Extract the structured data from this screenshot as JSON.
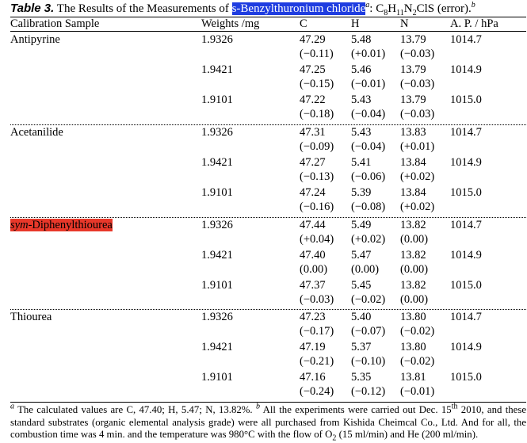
{
  "caption": {
    "label": "Table 3.",
    "text": "The Results of the Measurements of",
    "compound": "s-Benzylthuronium chloride",
    "sup_a": "a",
    "colon": ":",
    "suffix": "(error).",
    "sup_b": "b"
  },
  "headers": [
    "Calibration Sample",
    "Weights /mg",
    "C",
    "H",
    "N",
    "A. P. / hPa"
  ],
  "groups": [
    {
      "name": "Antipyrine",
      "prefix": "",
      "highlight": false,
      "rows": [
        {
          "weight": "1.9326",
          "c": "47.29",
          "c_err": "(−0.11)",
          "h": "5.48",
          "h_err": "(+0.01)",
          "n": "13.79",
          "n_err": "(−0.03)",
          "ap": "1014.7"
        },
        {
          "weight": "1.9421",
          "c": "47.25",
          "c_err": "(−0.15)",
          "h": "5.46",
          "h_err": "(−0.01)",
          "n": "13.79",
          "n_err": "(−0.03)",
          "ap": "1014.9"
        },
        {
          "weight": "1.9101",
          "c": "47.22",
          "c_err": "(−0.18)",
          "h": "5.43",
          "h_err": "(−0.04)",
          "n": "13.79",
          "n_err": "(−0.03)",
          "ap": "1015.0"
        }
      ]
    },
    {
      "name": "Acetanilide",
      "prefix": "",
      "highlight": false,
      "rows": [
        {
          "weight": "1.9326",
          "c": "47.31",
          "c_err": "(−0.09)",
          "h": "5.43",
          "h_err": "(−0.04)",
          "n": "13.83",
          "n_err": "(+0.01)",
          "ap": "1014.7"
        },
        {
          "weight": "1.9421",
          "c": "47.27",
          "c_err": "(−0.13)",
          "h": "5.41",
          "h_err": "(−0.06)",
          "n": "13.84",
          "n_err": "(+0.02)",
          "ap": "1014.9"
        },
        {
          "weight": "1.9101",
          "c": "47.24",
          "c_err": "(−0.16)",
          "h": "5.39",
          "h_err": "(−0.08)",
          "n": "13.84",
          "n_err": "(+0.02)",
          "ap": "1015.0"
        }
      ]
    },
    {
      "name": "-Diphenylthiourea",
      "prefix": "sym",
      "highlight": true,
      "rows": [
        {
          "weight": "1.9326",
          "c": "47.44",
          "c_err": "(+0.04)",
          "h": "5.49",
          "h_err": "(+0.02)",
          "n": "13.82",
          "n_err": "(0.00)",
          "ap": "1014.7"
        },
        {
          "weight": "1.9421",
          "c": "47.40",
          "c_err": "(0.00)",
          "h": "5.47",
          "h_err": "(0.00)",
          "n": "13.82",
          "n_err": "(0.00)",
          "ap": "1014.9"
        },
        {
          "weight": "1.9101",
          "c": "47.37",
          "c_err": "(−0.03)",
          "h": "5.45",
          "h_err": "(−0.02)",
          "n": "13.82",
          "n_err": "(0.00)",
          "ap": "1015.0"
        }
      ]
    },
    {
      "name": "Thiourea",
      "prefix": "",
      "highlight": false,
      "rows": [
        {
          "weight": "1.9326",
          "c": "47.23",
          "c_err": "(−0.17)",
          "h": "5.40",
          "h_err": "(−0.07)",
          "n": "13.80",
          "n_err": "(−0.02)",
          "ap": "1014.7"
        },
        {
          "weight": "1.9421",
          "c": "47.19",
          "c_err": "(−0.21)",
          "h": "5.37",
          "h_err": "(−0.10)",
          "n": "13.80",
          "n_err": "(−0.02)",
          "ap": "1014.9"
        },
        {
          "weight": "1.9101",
          "c": "47.16",
          "c_err": "(−0.24)",
          "h": "5.35",
          "h_err": "(−0.12)",
          "n": "13.81",
          "n_err": "(−0.01)",
          "ap": "1015.0"
        }
      ]
    }
  ],
  "footnotes": {
    "mark_a": "a",
    "a": "The calculated values are C, 47.40; H, 5.47; N, 13.82%.",
    "mark_b": "b",
    "b1": "All the experiments were carried out Dec. 15",
    "b_sup": "th",
    "b2": "2010, and these standard substrates (organic elemental analysis grade) were all purchased from Kishida Cheimcal Co., Ltd. And for all, the combustion time was 4 min. and the temperature was 980°C with the flow of O",
    "o2_sub": "2",
    "b3": "(15 ml/min) and He (200 ml/min)."
  },
  "colors": {
    "compound_highlight": "#1f3de0",
    "sample_highlight": "#e8382a"
  }
}
